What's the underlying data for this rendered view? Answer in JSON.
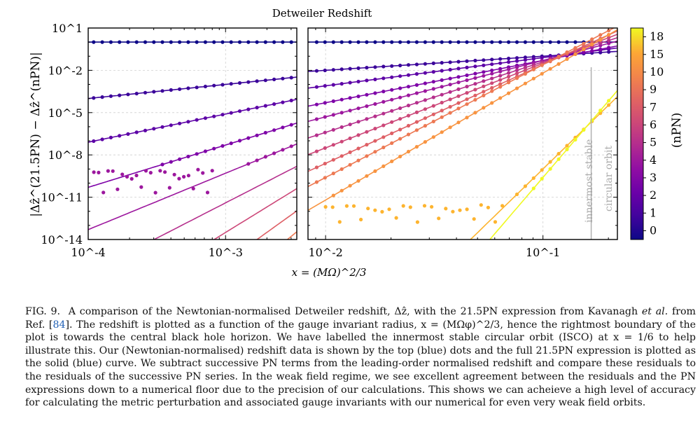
{
  "figure": {
    "title": "Detweiler Redshift",
    "xlabel": "x = (MΩ)^2/3",
    "ylabel": "|Δẑ^(21.5PN) − Δẑ^(nPN)|",
    "colorbar_label": "(nPN)",
    "colorbar_ticks": [
      "0",
      "1",
      "2",
      "3",
      "4",
      "5",
      "6",
      "7",
      "9",
      "10",
      "15",
      "18"
    ],
    "left_panel_xticks": [
      "10^-4",
      "10^-3"
    ],
    "right_panel_xticks": [
      "10^-2",
      "10^-1"
    ],
    "yticks": [
      "10^1",
      "10^-2",
      "10^-5",
      "10^-8",
      "10^-11",
      "10^-14"
    ],
    "annotation_line1": "innermost stable",
    "annotation_line2": "circular orbit"
  },
  "chart_data": {
    "type": "scatter",
    "title": "Detweiler Redshift",
    "xlabel": "x = (MΩ)^{2/3}",
    "ylabel": "|Δẑ^{(21.5PN)} − Δẑ^{(nPN)}|",
    "xscale": "log",
    "yscale": "log",
    "ylim": [
      1e-14,
      10
    ],
    "panels": [
      {
        "name": "left",
        "xlim": [
          0.0001,
          0.0033
        ]
      },
      {
        "name": "right",
        "xlim": [
          0.0083,
          0.22
        ]
      }
    ],
    "isco_x": 0.1667,
    "colormap": "plasma",
    "colorbar_range": [
      0,
      18
    ],
    "series": [
      {
        "name": "nPN=0",
        "color": "#0d0887",
        "log_anchor_at_1e-2": 0.0,
        "slope": 0
      },
      {
        "name": "nPN=1",
        "color": "#3b049a",
        "log_anchor_at_1e-2": -2.0,
        "slope": 1
      },
      {
        "name": "nPN=2",
        "color": "#5c01a6",
        "log_anchor_at_1e-2": -3.1,
        "slope": 2
      },
      {
        "name": "nPN=3",
        "color": "#7e03a8",
        "log_anchor_at_1e-2": -4.3,
        "slope": 3
      },
      {
        "name": "nPN=4",
        "color": "#9c179e",
        "log_anchor_at_1e-2": -5.3,
        "slope": 4
      },
      {
        "name": "nPN=5",
        "color": "#b52f8c",
        "log_anchor_at_1e-2": -6.4,
        "slope": 5
      },
      {
        "name": "nPN=6",
        "color": "#cc4778",
        "log_anchor_at_1e-2": -7.5,
        "slope": 6
      },
      {
        "name": "nPN=7",
        "color": "#de5f65",
        "log_anchor_at_1e-2": -8.6,
        "slope": 7
      },
      {
        "name": "nPN=9",
        "color": "#ed7953",
        "log_anchor_at_1e-2": -9.6,
        "slope": 8
      },
      {
        "name": "nPN=10",
        "color": "#f89441",
        "log_anchor_at_1e-2": -11.2,
        "slope": 9
      },
      {
        "name": "nPN=15",
        "color": "#fdb42f",
        "log_anchor_at_1e-2": -24.0,
        "slope": 15
      },
      {
        "name": "nPN=18",
        "color": "#f0f921",
        "log_anchor_at_1e-2": -27.6,
        "slope": 18
      }
    ],
    "noise_floor": [
      {
        "panel": "left",
        "color": "#9c179e",
        "x_range": [
          0.00011,
          0.0008
        ],
        "y_range": [
          1e-11,
          5e-09
        ]
      },
      {
        "panel": "right",
        "color": "#fdb42f",
        "x_range": [
          0.01,
          0.065
        ],
        "y_range": [
          1e-13,
          1e-11
        ]
      }
    ]
  },
  "caption": {
    "label": "FIG. 9.",
    "part1": "A comparison of the Newtonian-normalised Detweiler redshift, Δẑ, with the 21.5PN expression from Kavanagh",
    "et_al": "et al.",
    "part2": "from Ref. [",
    "ref": "84",
    "part3": "]. The redshift is plotted as a function of the gauge invariant radius, x = (MΩφ)^2/3, hence the rightmost boundary of the plot is towards the central black hole horizon. We have labelled the innermost stable circular orbit (ISCO) at x = 1/6 to help illustrate this. Our (Newtonian-normalised) redshift data is shown by the top (blue) dots and the full 21.5PN expression is plotted as the solid (blue) curve. We subtract successive PN terms from the leading-order normalised redshift and compare these residuals to the residuals of the successive PN series. In the weak field regime, we see excellent agreement between the residuals and the PN expressions down to a numerical floor due to the precision of our calculations. This shows we can acheieve a high level of accuracy for calculating the metric perturbation and associated gauge invariants with our numerical for even very weak field orbits."
  }
}
